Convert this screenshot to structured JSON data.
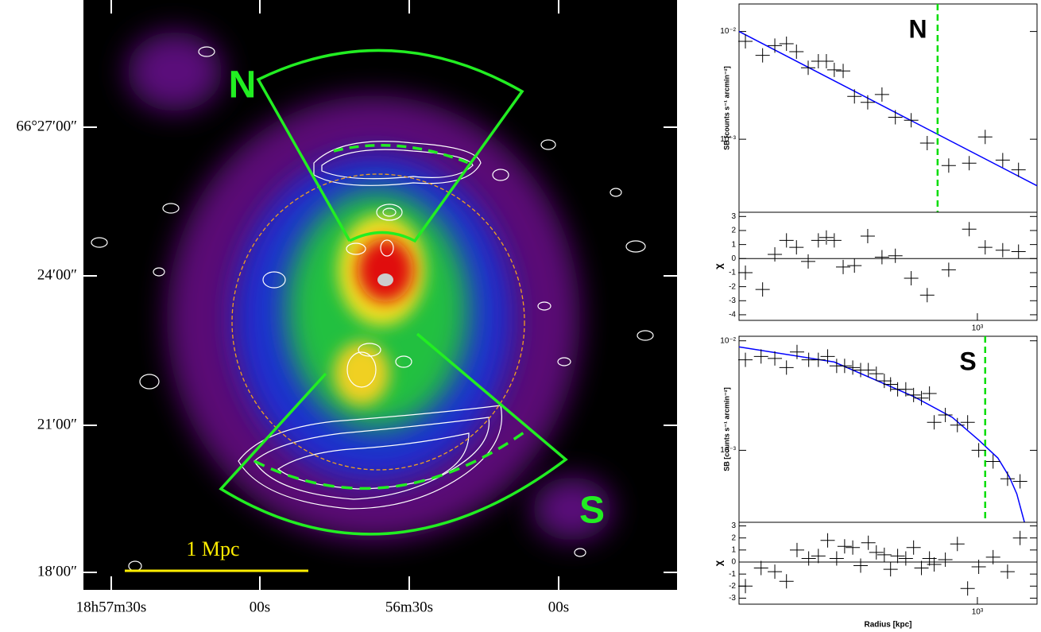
{
  "image": {
    "dec_ticks": [
      "66°27′00″",
      "24′00″",
      "21′00″",
      "18′00″"
    ],
    "ra_ticks": [
      "18h57m30s",
      "00s",
      "56m30s",
      "00s"
    ],
    "sector_labels": [
      "N",
      "S"
    ],
    "scale_bar": "1 Mpc"
  },
  "chart_data": [
    {
      "type": "profile",
      "title": "N",
      "ylabel": "SB [counts s⁻¹ arcmin⁻²]",
      "xlog": true,
      "ylog": true,
      "xlim": [
        120,
        1700
      ],
      "ylim": [
        0.00021,
        0.018
      ],
      "yticks": [
        {
          "value": 0.01,
          "label": "10⁻²"
        },
        {
          "value": 0.001,
          "label": "10⁻³"
        }
      ],
      "x": [
        127,
        148,
        165,
        183,
        200,
        222,
        243,
        261,
        280,
        303,
        335,
        377,
        428,
        482,
        555,
        640,
        775,
        930,
        1072,
        1253,
        1442
      ],
      "values": [
        0.0081,
        0.006,
        0.0074,
        0.0077,
        0.0065,
        0.0046,
        0.0053,
        0.0053,
        0.0044,
        0.0043,
        0.0025,
        0.0022,
        0.0026,
        0.0016,
        0.0015,
        0.00092,
        0.00057,
        0.0006,
        0.00105,
        0.00064,
        0.00052
      ],
      "color": "#000000",
      "model": {
        "x": [
          120,
          1700
        ],
        "values": [
          0.01,
          0.00037
        ],
        "color": "#0000ff"
      },
      "edge": 702,
      "edge_color": "#00dd00"
    },
    {
      "type": "residual",
      "ylabel": "χ",
      "xlog": true,
      "xlim": [
        120,
        1700
      ],
      "ylim": [
        -4.4,
        3.3
      ],
      "yticks": [
        -4,
        -3,
        -2,
        -1,
        0,
        1,
        2,
        3
      ],
      "xticks": [
        {
          "value": 1000,
          "label": "10³"
        }
      ],
      "x": [
        127,
        148,
        165,
        183,
        200,
        222,
        243,
        261,
        280,
        303,
        335,
        377,
        428,
        482,
        555,
        640,
        775,
        930,
        1072,
        1253,
        1442
      ],
      "values": [
        -1.0,
        -2.2,
        0.3,
        1.3,
        0.8,
        -0.2,
        1.3,
        1.5,
        1.3,
        -0.6,
        -0.5,
        1.6,
        0.1,
        0.2,
        -1.4,
        -2.6,
        -0.8,
        2.1,
        0.8,
        0.6,
        0.5
      ],
      "color": "#000000"
    },
    {
      "type": "profile",
      "title": "S",
      "ylabel": "SB [counts s⁻¹ arcmin⁻²]",
      "xlog": true,
      "ylog": true,
      "xlim": [
        120,
        1700
      ],
      "ylim": [
        0.00022,
        0.011
      ],
      "yticks": [
        {
          "value": 0.01,
          "label": "10⁻²"
        },
        {
          "value": 0.001,
          "label": "10⁻³"
        }
      ],
      "x": [
        127,
        146,
        165,
        183,
        201,
        223,
        243,
        264,
        286,
        307,
        330,
        354,
        379,
        407,
        437,
        462,
        492,
        529,
        567,
        608,
        653,
        681,
        752,
        837,
        917,
        1012,
        1150,
        1308,
        1462
      ],
      "values": [
        0.0067,
        0.0072,
        0.0069,
        0.0057,
        0.0079,
        0.0067,
        0.0067,
        0.0072,
        0.0059,
        0.0059,
        0.0057,
        0.0054,
        0.0054,
        0.005,
        0.0043,
        0.004,
        0.0036,
        0.0036,
        0.0032,
        0.003,
        0.0033,
        0.0018,
        0.0021,
        0.0017,
        0.0018,
        0.001,
        0.00079,
        0.00055,
        0.00052
      ],
      "color": "#000000",
      "model": {
        "x": [
          120,
          280,
          567,
          800,
          1012,
          1200,
          1330,
          1420,
          1520
        ],
        "values": [
          0.0088,
          0.0064,
          0.0031,
          0.002,
          0.00124,
          0.00085,
          0.00057,
          0.0004,
          0.00022
        ],
        "color": "#0000ff"
      },
      "edge": 1072,
      "edge_color": "#00dd00"
    },
    {
      "type": "residual",
      "ylabel": "χ",
      "xlabel": "Radius [kpc]",
      "xlog": true,
      "xlim": [
        120,
        1700
      ],
      "ylim": [
        -3.5,
        3.3
      ],
      "yticks": [
        -3,
        -2,
        -1,
        0,
        1,
        2,
        3
      ],
      "xticks": [
        {
          "value": 1000,
          "label": "10³"
        }
      ],
      "x": [
        127,
        146,
        165,
        183,
        201,
        223,
        243,
        264,
        286,
        307,
        330,
        354,
        379,
        407,
        437,
        462,
        492,
        529,
        567,
        608,
        653,
        681,
        752,
        837,
        917,
        1012,
        1150,
        1308,
        1462
      ],
      "values": [
        -2,
        -0.5,
        -0.8,
        -1.6,
        1,
        0.3,
        0.5,
        1.8,
        0.3,
        1.3,
        1.2,
        -0.3,
        1.6,
        0.8,
        0.6,
        -0.6,
        0.5,
        0.3,
        1.2,
        -0.5,
        0.3,
        -0.2,
        0.2,
        1.5,
        -2.2,
        -0.4,
        0.4,
        -0.8,
        2
      ],
      "color": "#000000"
    }
  ]
}
